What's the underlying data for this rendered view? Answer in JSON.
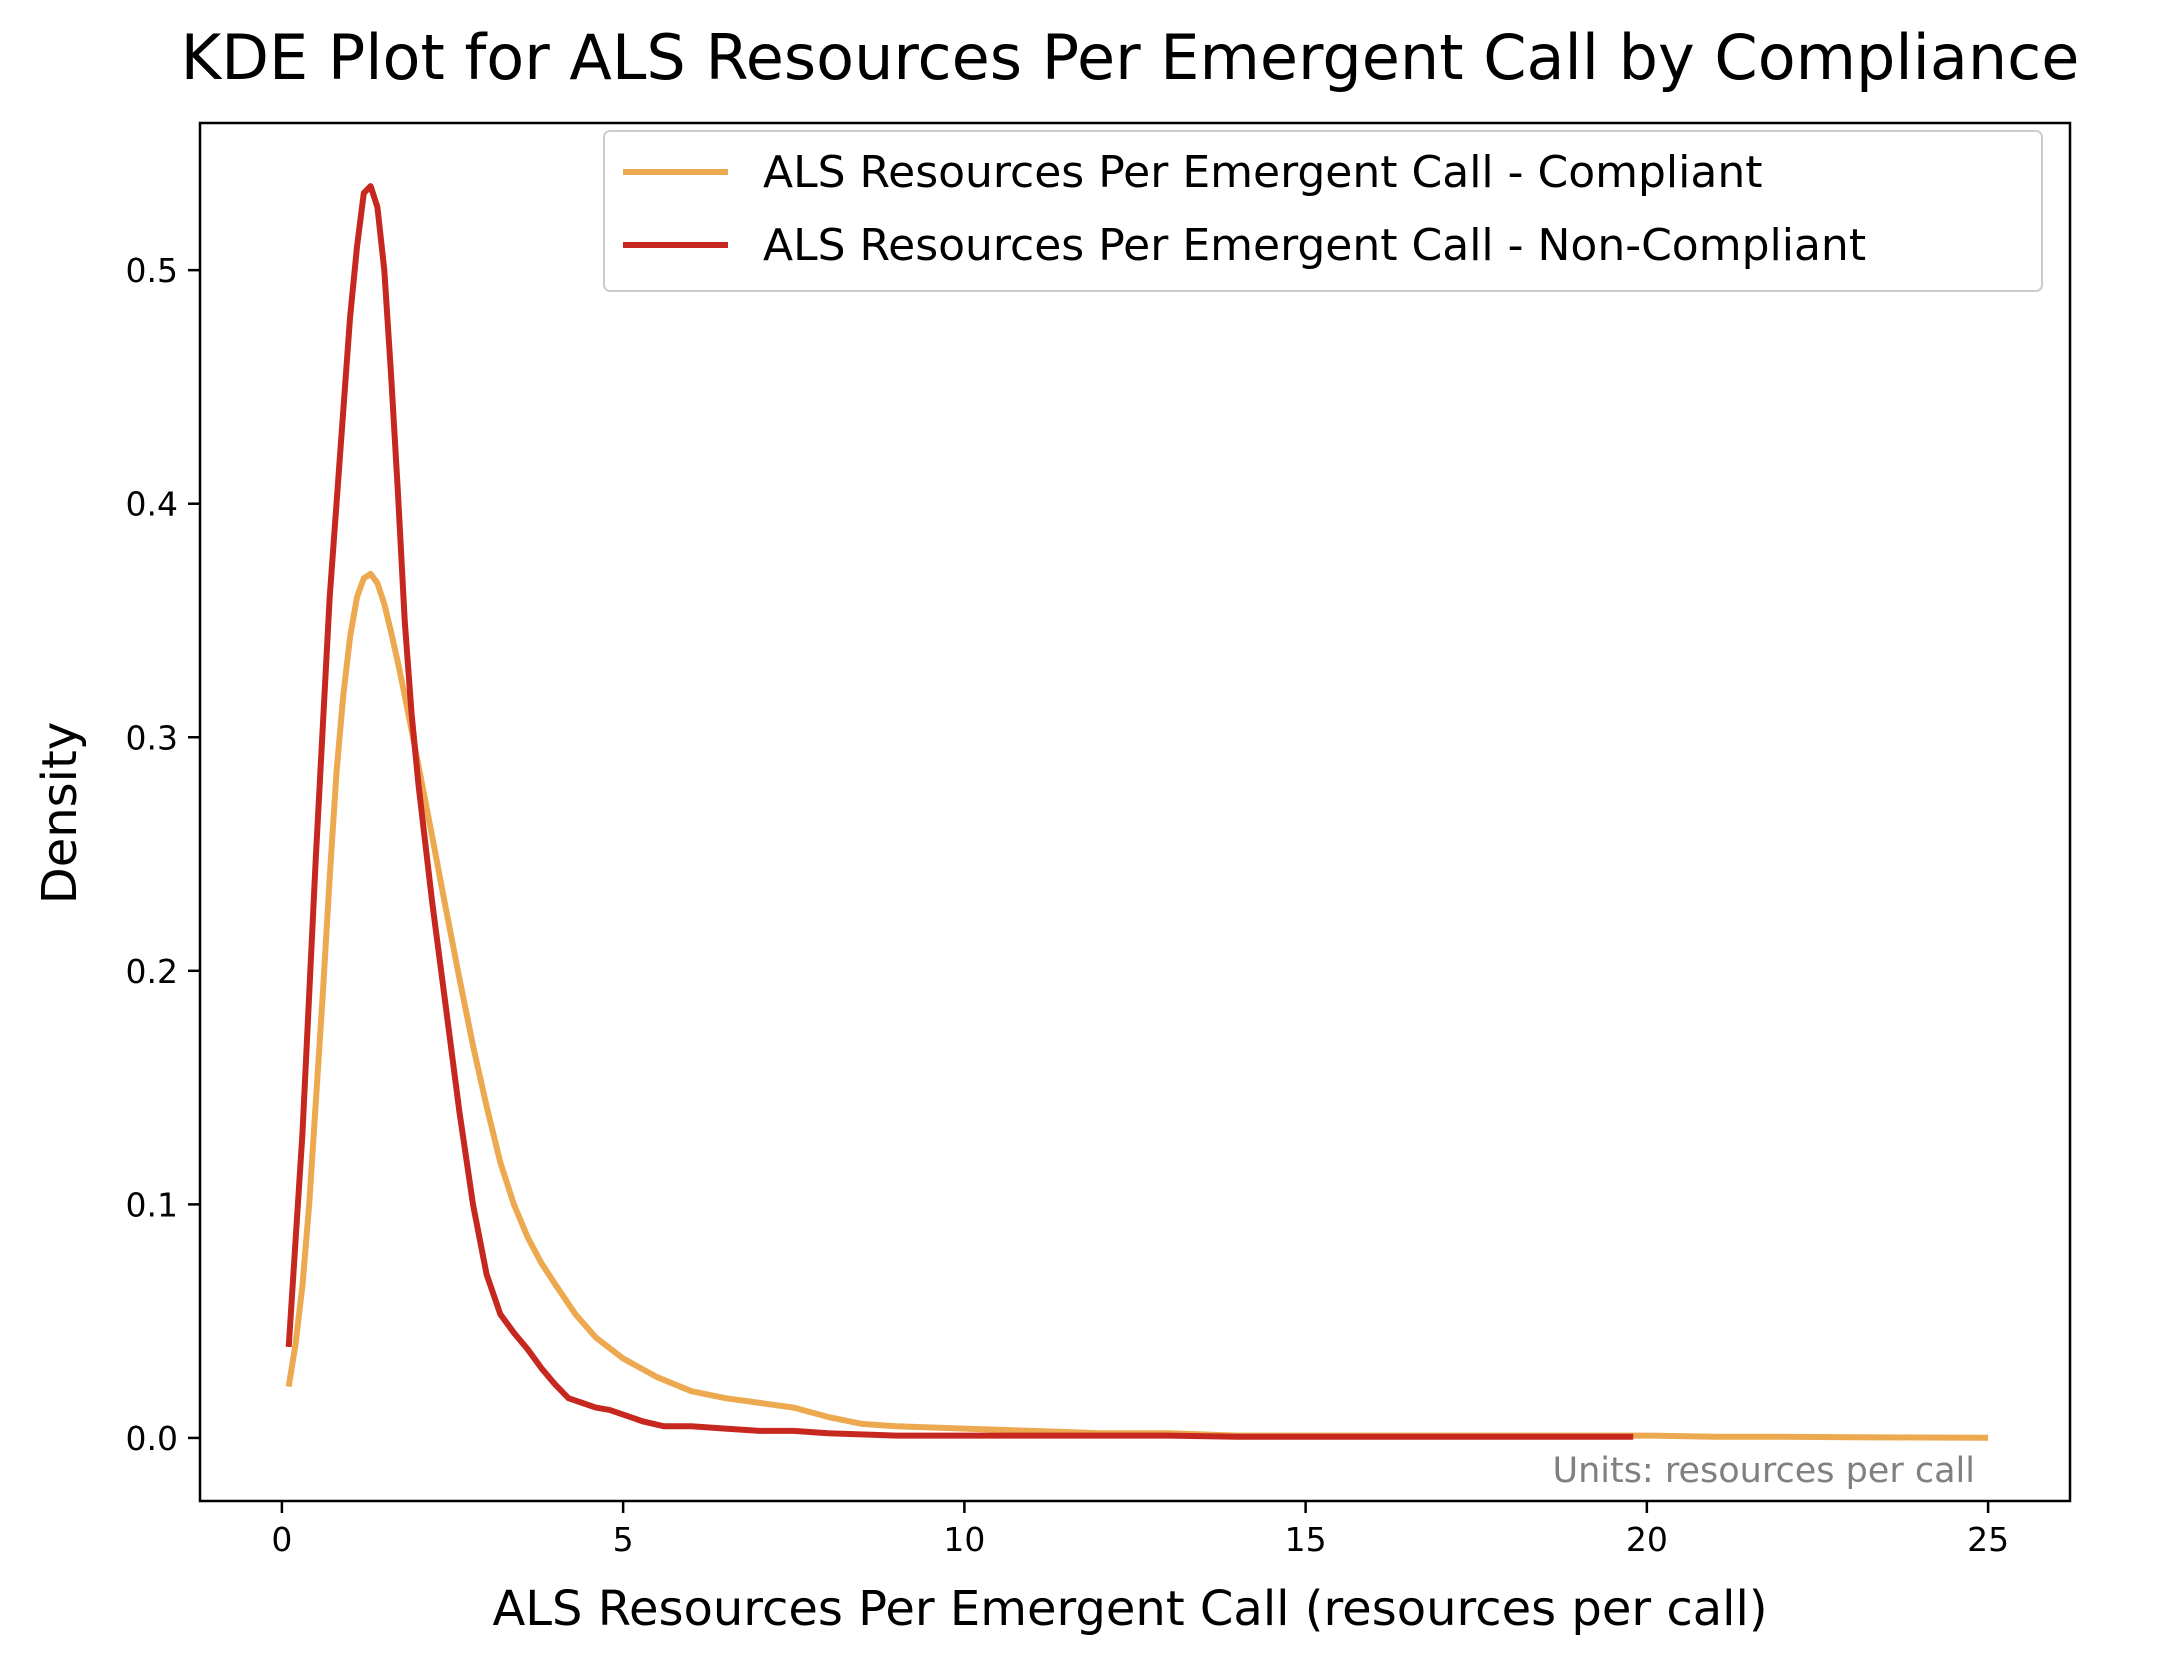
{
  "chart_data": {
    "type": "line",
    "title": "KDE Plot for ALS Resources Per Emergent Call by Compliance",
    "xlabel": "ALS Resources Per Emergent Call (resources per call)",
    "ylabel": "Density",
    "xlim": [
      -1.2,
      26.2
    ],
    "ylim": [
      -0.027,
      0.563
    ],
    "xticks": [
      0,
      5,
      10,
      15,
      20,
      25
    ],
    "yticks": [
      0.0,
      0.1,
      0.2,
      0.3,
      0.4,
      0.5
    ],
    "xtick_labels": [
      "0",
      "5",
      "10",
      "15",
      "20",
      "25"
    ],
    "ytick_labels": [
      "0.0",
      "0.1",
      "0.2",
      "0.3",
      "0.4",
      "0.5"
    ],
    "grid": false,
    "legend_position": "top-right",
    "annotation": "Units: resources per call",
    "series": [
      {
        "name": "ALS Resources Per Emergent Call - Compliant",
        "color": "#EDA94F",
        "x": [
          0.1,
          0.2,
          0.3,
          0.4,
          0.5,
          0.6,
          0.7,
          0.8,
          0.9,
          1.0,
          1.1,
          1.2,
          1.3,
          1.4,
          1.5,
          1.6,
          1.7,
          1.8,
          1.9,
          2.0,
          2.2,
          2.4,
          2.6,
          2.8,
          3.0,
          3.2,
          3.4,
          3.6,
          3.8,
          4.0,
          4.3,
          4.6,
          5.0,
          5.5,
          6.0,
          6.5,
          7.0,
          7.5,
          8.0,
          8.5,
          9.0,
          10.0,
          11.0,
          12.0,
          13.0,
          14.0,
          15.0,
          16.0,
          17.0,
          18.0,
          19.0,
          20.0,
          21.0,
          22.0,
          23.0,
          24.0,
          25.0
        ],
        "y": [
          0.022,
          0.04,
          0.065,
          0.1,
          0.145,
          0.19,
          0.24,
          0.285,
          0.318,
          0.343,
          0.36,
          0.368,
          0.37,
          0.366,
          0.357,
          0.345,
          0.332,
          0.318,
          0.303,
          0.288,
          0.258,
          0.227,
          0.197,
          0.168,
          0.142,
          0.118,
          0.1,
          0.086,
          0.075,
          0.066,
          0.053,
          0.043,
          0.034,
          0.026,
          0.02,
          0.017,
          0.015,
          0.013,
          0.009,
          0.006,
          0.005,
          0.004,
          0.003,
          0.002,
          0.002,
          0.001,
          0.001,
          0.001,
          0.001,
          0.001,
          0.001,
          0.001,
          0.0005,
          0.0005,
          0.0003,
          0.0002,
          0.0001
        ]
      },
      {
        "name": "ALS Resources Per Emergent Call - Non-Compliant",
        "color": "#C6281F",
        "x": [
          0.1,
          0.3,
          0.5,
          0.7,
          0.9,
          1.0,
          1.1,
          1.2,
          1.3,
          1.4,
          1.5,
          1.6,
          1.7,
          1.8,
          1.9,
          2.0,
          2.2,
          2.4,
          2.6,
          2.8,
          3.0,
          3.2,
          3.4,
          3.6,
          3.8,
          4.0,
          4.2,
          4.4,
          4.6,
          4.8,
          5.0,
          5.3,
          5.6,
          6.0,
          6.5,
          7.0,
          7.5,
          8.0,
          9.0,
          10.0,
          11.0,
          12.0,
          13.0,
          14.0,
          15.0,
          16.0,
          17.0,
          18.0,
          19.0,
          19.8
        ],
        "y": [
          0.039,
          0.13,
          0.25,
          0.36,
          0.44,
          0.48,
          0.51,
          0.533,
          0.536,
          0.527,
          0.5,
          0.455,
          0.405,
          0.35,
          0.31,
          0.28,
          0.23,
          0.185,
          0.14,
          0.1,
          0.07,
          0.053,
          0.045,
          0.038,
          0.03,
          0.023,
          0.017,
          0.015,
          0.013,
          0.012,
          0.01,
          0.007,
          0.005,
          0.005,
          0.004,
          0.003,
          0.003,
          0.002,
          0.001,
          0.001,
          0.001,
          0.001,
          0.001,
          0.0005,
          0.0005,
          0.0005,
          0.0005,
          0.0005,
          0.0005,
          0.0005
        ]
      }
    ]
  }
}
